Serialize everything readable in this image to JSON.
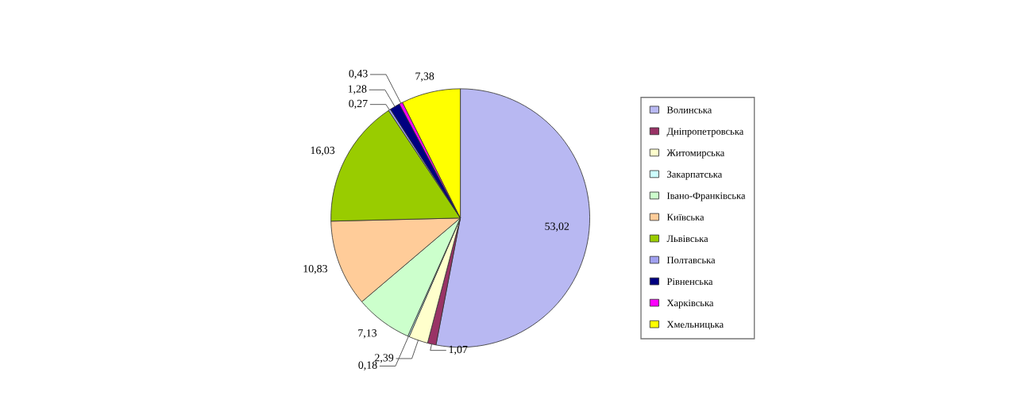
{
  "chart_data": {
    "type": "pie",
    "categories": [
      "Волинська",
      "Дніпропетровська",
      "Житомирська",
      "Закарпатська",
      "Івано-Франківська",
      "Київська",
      "Львівська",
      "Полтавська",
      "Рівненська",
      "Харківська",
      "Хмельницька"
    ],
    "values": [
      53.02,
      1.07,
      2.39,
      0.18,
      7.13,
      10.83,
      16.03,
      0.27,
      1.28,
      0.43,
      7.38
    ],
    "value_labels": [
      "53,02",
      "1,07",
      "2,39",
      "0,18",
      "7,13",
      "10,83",
      "16,03",
      "0,27",
      "1,28",
      "0,43",
      "7,38"
    ],
    "colors": [
      "#b8b8f2",
      "#993366",
      "#ffffcc",
      "#ccffff",
      "#ccffcc",
      "#ffcc99",
      "#99cc00",
      "#a0a0f0",
      "#000080",
      "#ff00ff",
      "#ffff00"
    ],
    "legend": "right"
  }
}
